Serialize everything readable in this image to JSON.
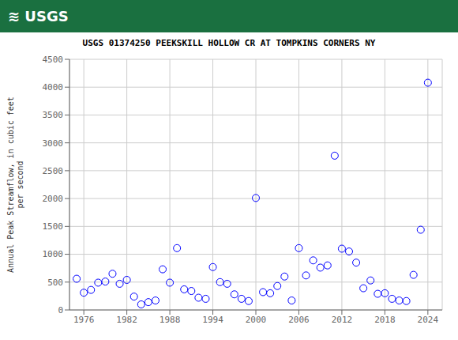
{
  "chart_data": {
    "type": "scatter",
    "title": "USGS 01374250 PEEKSKILL HOLLOW CR AT TOMPKINS CORNERS NY",
    "annotations": [
      "≋ USGS"
    ],
    "ylabel": "Annual Peak Streamflow, in cubic feet\nper second",
    "x": [
      1975,
      1976,
      1977,
      1978,
      1979,
      1980,
      1981,
      1982,
      1983,
      1984,
      1985,
      1986,
      1987,
      1988,
      1989,
      1990,
      1991,
      1992,
      1993,
      1994,
      1995,
      1996,
      1997,
      1998,
      1999,
      2000,
      2001,
      2002,
      2003,
      2004,
      2005,
      2006,
      2007,
      2008,
      2009,
      2010,
      2011,
      2012,
      2013,
      2014,
      2015,
      2016,
      2017,
      2018,
      2019,
      2020,
      2021,
      2022,
      2023,
      2024
    ],
    "values": [
      560,
      310,
      360,
      490,
      510,
      650,
      470,
      540,
      240,
      100,
      140,
      170,
      730,
      490,
      1110,
      370,
      340,
      220,
      200,
      770,
      500,
      470,
      280,
      200,
      160,
      2010,
      320,
      300,
      430,
      600,
      170,
      1110,
      620,
      890,
      760,
      800,
      2770,
      1100,
      1050,
      850,
      390,
      530,
      290,
      300,
      200,
      170,
      160,
      630,
      1440,
      4080
    ],
    "xlim": [
      1974,
      2026
    ],
    "xticks": [
      1976,
      1982,
      1988,
      1994,
      2000,
      2006,
      2012,
      2018,
      2024
    ],
    "ylim": [
      0,
      4500
    ],
    "yticks": [
      0,
      500,
      1000,
      1500,
      2000,
      2500,
      3000,
      3500,
      4000,
      4500
    ],
    "color": "blue",
    "marker": "circle",
    "grid": true
  }
}
